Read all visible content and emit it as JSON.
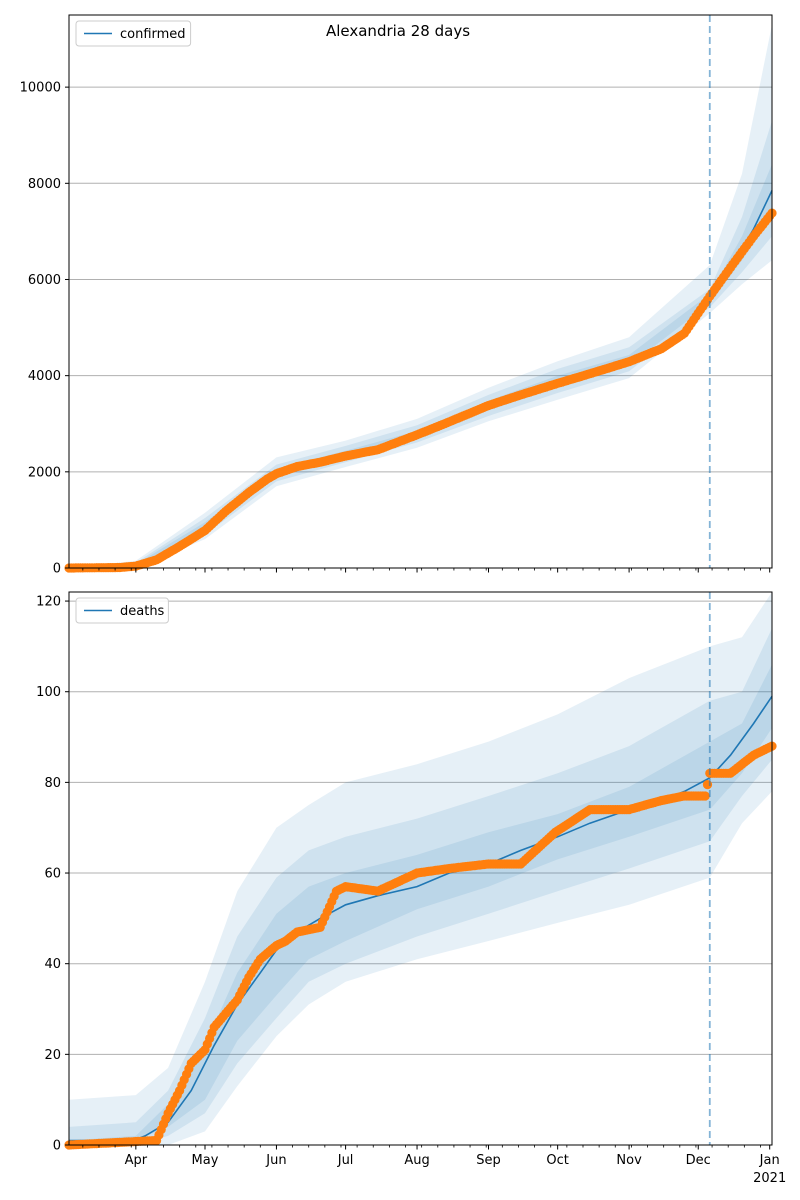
{
  "figure": {
    "title": "Alexandria 28 days"
  },
  "colors": {
    "line": "#1f77b4",
    "points": "#ff7f0e",
    "band": "#1f77b4",
    "grid": "#b0b0b0",
    "vline": "#1f77b4"
  },
  "x_axis": {
    "ticks": [
      {
        "date": "2020-04-01",
        "label": "Apr"
      },
      {
        "date": "2020-05-01",
        "label": "May"
      },
      {
        "date": "2020-06-01",
        "label": "Jun"
      },
      {
        "date": "2020-07-01",
        "label": "Jul"
      },
      {
        "date": "2020-08-01",
        "label": "Aug"
      },
      {
        "date": "2020-09-01",
        "label": "Sep"
      },
      {
        "date": "2020-10-01",
        "label": "Oct"
      },
      {
        "date": "2020-11-01",
        "label": "Nov"
      },
      {
        "date": "2020-12-01",
        "label": "Dec"
      },
      {
        "date": "2021-01-01",
        "label": "Jan"
      }
    ],
    "year_label": "2021",
    "xlim": [
      "2020-03-03",
      "2021-01-02"
    ]
  },
  "chart_data": [
    {
      "type": "line",
      "legend": "confirmed",
      "legend_position": "top-left",
      "grid": "horizontal",
      "ylim": [
        0,
        11500
      ],
      "yticks": [
        0,
        2000,
        4000,
        6000,
        8000,
        10000
      ],
      "vline_date": "2020-12-06",
      "series": [
        {
          "name": "confirmed",
          "kind": "model",
          "x": [
            "2020-03-03",
            "2020-03-25",
            "2020-04-01",
            "2020-04-10",
            "2020-04-20",
            "2020-05-01",
            "2020-05-10",
            "2020-05-20",
            "2020-05-28",
            "2020-06-01",
            "2020-06-10",
            "2020-06-20",
            "2020-07-01",
            "2020-07-15",
            "2020-08-01",
            "2020-08-15",
            "2020-09-01",
            "2020-09-15",
            "2020-10-01",
            "2020-10-15",
            "2020-11-01",
            "2020-11-15",
            "2020-11-25",
            "2020-12-06",
            "2020-12-15",
            "2020-12-25",
            "2021-01-02"
          ],
          "y": [
            0,
            10,
            50,
            150,
            450,
            850,
            1250,
            1650,
            1900,
            1980,
            2150,
            2260,
            2360,
            2500,
            2780,
            3050,
            3380,
            3620,
            3880,
            4080,
            4320,
            4580,
            4900,
            5580,
            6250,
            7050,
            7850
          ]
        },
        {
          "name": "observed",
          "kind": "points",
          "x": [
            "2020-03-03",
            "2020-03-25",
            "2020-04-01",
            "2020-04-10",
            "2020-04-20",
            "2020-05-01",
            "2020-05-10",
            "2020-05-20",
            "2020-05-28",
            "2020-06-01",
            "2020-06-10",
            "2020-06-20",
            "2020-07-01",
            "2020-07-15",
            "2020-08-01",
            "2020-08-15",
            "2020-09-01",
            "2020-09-15",
            "2020-10-01",
            "2020-10-15",
            "2020-11-01",
            "2020-11-15",
            "2020-11-25",
            "2020-12-06",
            "2020-12-15",
            "2020-12-25",
            "2021-01-02"
          ],
          "y": [
            0,
            10,
            40,
            170,
            450,
            780,
            1180,
            1570,
            1850,
            1960,
            2110,
            2200,
            2330,
            2460,
            2770,
            3040,
            3380,
            3600,
            3840,
            4040,
            4290,
            4560,
            4880,
            5650,
            6250,
            6900,
            7380
          ]
        }
      ],
      "bands": [
        {
          "x": [
            "2020-03-03",
            "2020-04-01",
            "2020-05-01",
            "2020-06-01",
            "2020-07-01",
            "2020-08-01",
            "2020-09-01",
            "2020-10-01",
            "2020-11-01",
            "2020-12-06",
            "2020-12-20",
            "2021-01-02"
          ],
          "lower": [
            0,
            0,
            600,
            1700,
            2100,
            2500,
            3050,
            3500,
            3950,
            5300,
            5900,
            6400
          ],
          "upper": [
            0,
            150,
            1150,
            2300,
            2650,
            3100,
            3750,
            4300,
            4800,
            6300,
            8200,
            11300
          ]
        },
        {
          "x": [
            "2020-03-03",
            "2020-04-01",
            "2020-05-01",
            "2020-06-01",
            "2020-07-01",
            "2020-08-01",
            "2020-09-01",
            "2020-10-01",
            "2020-11-01",
            "2020-12-06",
            "2020-12-20",
            "2021-01-02"
          ],
          "lower": [
            0,
            10,
            690,
            1800,
            2200,
            2610,
            3160,
            3640,
            4090,
            5420,
            6150,
            6900
          ],
          "upper": [
            0,
            110,
            1040,
            2150,
            2540,
            2970,
            3600,
            4140,
            4590,
            5800,
            7300,
            9300
          ]
        },
        {
          "x": [
            "2020-03-03",
            "2020-04-01",
            "2020-05-01",
            "2020-06-01",
            "2020-07-01",
            "2020-08-01",
            "2020-09-01",
            "2020-10-01",
            "2020-11-01",
            "2020-12-06",
            "2020-12-20",
            "2021-01-02"
          ],
          "lower": [
            0,
            25,
            770,
            1890,
            2290,
            2710,
            3280,
            3760,
            4210,
            5500,
            6400,
            7300
          ],
          "upper": [
            0,
            80,
            950,
            2070,
            2440,
            2850,
            3480,
            4000,
            4430,
            5700,
            6900,
            8400
          ]
        }
      ]
    },
    {
      "type": "line",
      "legend": "deaths",
      "legend_position": "top-left",
      "grid": "horizontal",
      "ylim": [
        0,
        122
      ],
      "yticks": [
        0,
        20,
        40,
        60,
        80,
        100,
        120
      ],
      "vline_date": "2020-12-06",
      "series": [
        {
          "name": "deaths",
          "kind": "model",
          "x": [
            "2020-03-03",
            "2020-03-31",
            "2020-04-05",
            "2020-04-15",
            "2020-04-25",
            "2020-05-05",
            "2020-05-15",
            "2020-05-25",
            "2020-06-01",
            "2020-06-10",
            "2020-06-20",
            "2020-07-01",
            "2020-07-15",
            "2020-08-01",
            "2020-08-15",
            "2020-09-01",
            "2020-09-15",
            "2020-10-01",
            "2020-10-15",
            "2020-11-01",
            "2020-11-15",
            "2020-11-25",
            "2020-12-06",
            "2020-12-15",
            "2020-12-25",
            "2021-01-02"
          ],
          "y": [
            1,
            1,
            2,
            5,
            12,
            22,
            31,
            38,
            43,
            47,
            50,
            53,
            55,
            57,
            60,
            62,
            65,
            68,
            71,
            74,
            76,
            78,
            81,
            86,
            93,
            99
          ]
        },
        {
          "name": "observed",
          "kind": "points",
          "x": [
            "2020-03-03",
            "2020-04-10",
            "2020-04-15",
            "2020-04-20",
            "2020-04-25",
            "2020-05-01",
            "2020-05-05",
            "2020-05-10",
            "2020-05-15",
            "2020-05-20",
            "2020-05-25",
            "2020-06-01",
            "2020-06-05",
            "2020-06-10",
            "2020-06-20",
            "2020-06-27",
            "2020-07-01",
            "2020-07-15",
            "2020-08-01",
            "2020-08-15",
            "2020-09-01",
            "2020-09-15",
            "2020-09-30",
            "2020-10-15",
            "2020-11-01",
            "2020-11-15",
            "2020-11-25",
            "2020-12-04",
            "2020-12-06",
            "2020-12-15",
            "2020-12-25",
            "2021-01-02"
          ],
          "y": [
            0,
            1,
            7,
            12,
            18,
            21,
            26,
            29,
            32,
            37,
            41,
            44,
            45,
            47,
            48,
            56,
            57,
            56,
            60,
            61,
            62,
            62,
            69,
            74,
            74,
            76,
            77,
            77,
            82,
            82,
            86,
            88
          ]
        }
      ],
      "bands": [
        {
          "x": [
            "2020-03-03",
            "2020-04-01",
            "2020-04-15",
            "2020-05-01",
            "2020-05-15",
            "2020-06-01",
            "2020-06-15",
            "2020-07-01",
            "2020-08-01",
            "2020-09-01",
            "2020-10-01",
            "2020-11-01",
            "2020-12-06",
            "2020-12-20",
            "2021-01-02"
          ],
          "lower": [
            0,
            0,
            0,
            3,
            13,
            24,
            31,
            36,
            41,
            45,
            49,
            53,
            59,
            71,
            78
          ],
          "upper": [
            10,
            11,
            17,
            36,
            56,
            70,
            75,
            80,
            84,
            89,
            95,
            103,
            110,
            112,
            122
          ]
        },
        {
          "x": [
            "2020-03-03",
            "2020-04-01",
            "2020-04-15",
            "2020-05-01",
            "2020-05-15",
            "2020-06-01",
            "2020-06-15",
            "2020-07-01",
            "2020-08-01",
            "2020-09-01",
            "2020-10-01",
            "2020-11-01",
            "2020-12-06",
            "2020-12-20",
            "2021-01-02"
          ],
          "lower": [
            0,
            0,
            2,
            7,
            18,
            28,
            36,
            40,
            46,
            51,
            56,
            61,
            67,
            77,
            85
          ],
          "upper": [
            4,
            5,
            12,
            28,
            46,
            59,
            65,
            68,
            72,
            77,
            82,
            88,
            98,
            100,
            114
          ]
        },
        {
          "x": [
            "2020-03-03",
            "2020-04-01",
            "2020-04-15",
            "2020-05-01",
            "2020-05-15",
            "2020-06-01",
            "2020-06-15",
            "2020-07-01",
            "2020-08-01",
            "2020-09-01",
            "2020-10-01",
            "2020-11-01",
            "2020-12-06",
            "2020-12-20",
            "2021-01-02"
          ],
          "lower": [
            0,
            1,
            4,
            10,
            23,
            33,
            41,
            45,
            52,
            57,
            63,
            68,
            74,
            82,
            92
          ],
          "upper": [
            1,
            2,
            9,
            22,
            38,
            51,
            57,
            60,
            64,
            69,
            73,
            79,
            89,
            93,
            106
          ]
        }
      ]
    }
  ]
}
